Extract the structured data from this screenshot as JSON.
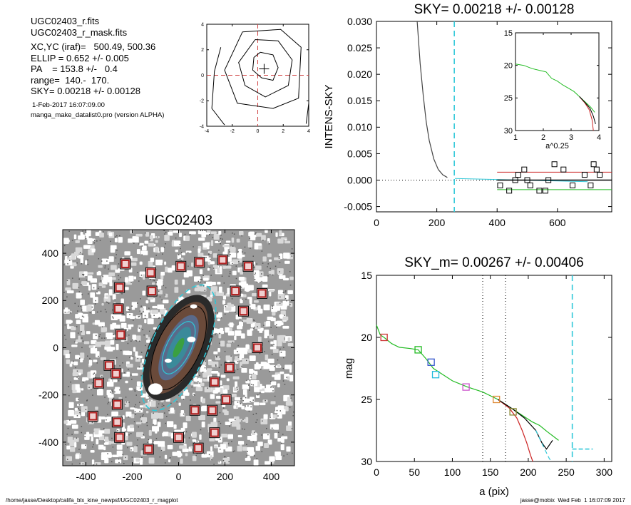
{
  "header": {
    "lines": [
      "UGC02403_r.fits",
      "UGC02403_r_mask.fits",
      "XC,YC (iraf)=   500.49, 500.36",
      "ELLIP = 0.652 +/- 0.005",
      "PA    = 153.8 +/-   0.4",
      "range=  140.-  170.",
      "SKY= 0.00218 +/- 0.00128"
    ],
    "date": "1-Feb-2017 16:07:09.00",
    "program": "manga_make_datalist0.pro (version ALPHA)"
  },
  "footer": {
    "path": "/home/jasse/Desktop/califa_blx_kine_newpsf/UGC02403_r_magplot",
    "user": "jasse@mobix  Wed Feb  1 16:07:09 2017"
  },
  "colors": {
    "sky_marker": "#30c8d8",
    "mag_green": "#22bb22",
    "mag_red": "#cc2222",
    "mag_black": "#000000",
    "mask_box": "#b02020",
    "ref_red": "#d04040"
  },
  "chart_data": [
    {
      "type": "contour",
      "title": "",
      "x_ticks": [
        "-4",
        "-2",
        "0",
        "2",
        "4"
      ],
      "y_ticks": [
        "-4",
        "-2",
        "0",
        "2",
        "4"
      ],
      "xlim": [
        -4,
        4
      ],
      "ylim": [
        -4,
        4
      ],
      "center": [
        0.5,
        0.5
      ],
      "contour_count": 4
    },
    {
      "type": "line",
      "title": "SKY= 0.00218 +/- 0.00128",
      "ylabel": "INTENS-SKY",
      "xlabel": "",
      "xlim": [
        0,
        780
      ],
      "ylim": [
        -0.006,
        0.03
      ],
      "x_ticks": [
        "0",
        "200",
        "400",
        "600"
      ],
      "y_ticks": [
        "0.030",
        "0.025",
        "0.020",
        "0.015",
        "0.010",
        "0.005",
        "0.000",
        "-0.005"
      ],
      "sky_radius": 258,
      "profile": [
        [
          135,
          0.03
        ],
        [
          145,
          0.022
        ],
        [
          155,
          0.016
        ],
        [
          165,
          0.011
        ],
        [
          175,
          0.0075
        ],
        [
          190,
          0.004
        ],
        [
          205,
          0.002
        ],
        [
          220,
          0.001
        ],
        [
          235,
          0.0005
        ]
      ],
      "sky_squares": [
        [
          410,
          -0.001
        ],
        [
          440,
          -0.002
        ],
        [
          470,
          0.001
        ],
        [
          490,
          0.002
        ],
        [
          510,
          -0.001
        ],
        [
          540,
          -0.002
        ],
        [
          570,
          0.0
        ],
        [
          590,
          0.003
        ],
        [
          620,
          0.002
        ],
        [
          650,
          -0.001
        ],
        [
          690,
          0.001
        ],
        [
          720,
          0.003
        ],
        [
          730,
          0.002
        ],
        [
          740,
          0.001
        ],
        [
          710,
          -0.001
        ],
        [
          560,
          -0.002
        ],
        [
          500,
          0.0
        ],
        [
          460,
          0.0
        ]
      ],
      "sky_level_lines": {
        "upper": 0.0015,
        "lower": -0.0018,
        "center": 0.0
      }
    },
    {
      "type": "line",
      "title": "",
      "xlabel": "a^0.25",
      "xlim": [
        1,
        4
      ],
      "ylim": [
        30,
        15
      ],
      "x_ticks": [
        "1",
        "2",
        "3",
        "4"
      ],
      "y_ticks": [
        "15",
        "20",
        "25",
        "30"
      ],
      "series": [
        {
          "color": "green",
          "points": [
            [
              1.0,
              19.8
            ],
            [
              1.3,
              20.0
            ],
            [
              1.6,
              20.5
            ],
            [
              1.9,
              20.8
            ],
            [
              2.1,
              21.0
            ],
            [
              2.3,
              22.0
            ],
            [
              2.5,
              22.4
            ],
            [
              2.7,
              23.0
            ],
            [
              2.9,
              23.5
            ],
            [
              3.1,
              24.0
            ],
            [
              3.3,
              24.8
            ],
            [
              3.5,
              25.6
            ],
            [
              3.7,
              26.4
            ],
            [
              3.85,
              27.2
            ]
          ]
        },
        {
          "color": "red",
          "points": [
            [
              3.3,
              24.8
            ],
            [
              3.5,
              25.8
            ],
            [
              3.65,
              26.8
            ],
            [
              3.75,
              28.3
            ],
            [
              3.8,
              30.0
            ]
          ]
        },
        {
          "color": "black",
          "points": [
            [
              3.3,
              24.8
            ],
            [
              3.5,
              25.7
            ],
            [
              3.68,
              26.6
            ],
            [
              3.8,
              27.8
            ],
            [
              3.88,
              29.0
            ]
          ]
        }
      ]
    },
    {
      "type": "image",
      "title": "UGC02403",
      "xlim": [
        -500,
        500
      ],
      "ylim": [
        -500,
        500
      ],
      "x_ticks": [
        "-400",
        "-200",
        "0",
        "200",
        "400"
      ],
      "y_ticks": [
        "400",
        "200",
        "0",
        "-200",
        "-400"
      ],
      "ellipse_pa_deg": 153.8,
      "ellipticity": 0.652,
      "mask_squares": [
        [
          -230,
          355
        ],
        [
          -120,
          318
        ],
        [
          10,
          345
        ],
        [
          90,
          362
        ],
        [
          190,
          372
        ],
        [
          300,
          345
        ],
        [
          -255,
          255
        ],
        [
          -115,
          240
        ],
        [
          245,
          240
        ],
        [
          360,
          230
        ],
        [
          -260,
          165
        ],
        [
          280,
          155
        ],
        [
          -250,
          55
        ],
        [
          340,
          0
        ],
        [
          -300,
          -75
        ],
        [
          -270,
          -110
        ],
        [
          220,
          -85
        ],
        [
          -345,
          -150
        ],
        [
          155,
          -145
        ],
        [
          -265,
          -240
        ],
        [
          205,
          -220
        ],
        [
          70,
          -265
        ],
        [
          145,
          -265
        ],
        [
          -370,
          -290
        ],
        [
          -265,
          -315
        ],
        [
          -255,
          -380
        ],
        [
          0,
          -380
        ],
        [
          155,
          -360
        ],
        [
          -130,
          -430
        ],
        [
          85,
          -425
        ]
      ]
    },
    {
      "type": "line",
      "title": "SKY_m=  0.00267 +/- 0.00406",
      "xlabel": "a (pix)",
      "ylabel": "mag",
      "xlim": [
        0,
        310
      ],
      "ylim": [
        30,
        15
      ],
      "x_ticks": [
        "0",
        "50",
        "100",
        "150",
        "200",
        "250",
        "300"
      ],
      "y_ticks": [
        "15",
        "20",
        "25",
        "30"
      ],
      "vlines_dotted": [
        140,
        170
      ],
      "sky_radius": 258,
      "series": [
        {
          "color": "green",
          "points": [
            [
              0,
              19.0
            ],
            [
              5,
              19.8
            ],
            [
              10,
              20.0
            ],
            [
              20,
              20.5
            ],
            [
              30,
              20.8
            ],
            [
              45,
              20.9
            ],
            [
              55,
              21.0
            ],
            [
              65,
              21.7
            ],
            [
              75,
              22.5
            ],
            [
              85,
              22.9
            ],
            [
              100,
              23.5
            ],
            [
              120,
              24.0
            ],
            [
              140,
              24.4
            ],
            [
              160,
              25.0
            ],
            [
              175,
              25.6
            ],
            [
              190,
              26.2
            ],
            [
              205,
              26.8
            ],
            [
              215,
              27.1
            ],
            [
              225,
              27.6
            ],
            [
              240,
              28.3
            ]
          ]
        },
        {
          "color": "red",
          "points": [
            [
              160,
              25.0
            ],
            [
              175,
              25.7
            ],
            [
              185,
              26.5
            ],
            [
              192,
              27.5
            ],
            [
              198,
              28.5
            ],
            [
              203,
              29.5
            ],
            [
              206,
              30.0
            ]
          ]
        },
        {
          "color": "black",
          "points": [
            [
              160,
              25.0
            ],
            [
              180,
              25.8
            ],
            [
              195,
              26.5
            ],
            [
              210,
              27.5
            ],
            [
              218,
              28.5
            ],
            [
              224,
              29.0
            ],
            [
              232,
              28.3
            ]
          ]
        },
        {
          "color": "dash",
          "points": [
            [
              210,
              27.5
            ],
            [
              220,
              28.8
            ],
            [
              228,
              29.8
            ],
            [
              232,
              30.0
            ]
          ]
        }
      ],
      "squares": [
        [
          10,
          20.0,
          "#cc3333"
        ],
        [
          55,
          21.0,
          "#22bb22"
        ],
        [
          72,
          22.0,
          "#3355cc"
        ],
        [
          78,
          23.0,
          "#22bbdd"
        ],
        [
          118,
          24.0,
          "#cc55cc"
        ],
        [
          158,
          25.0,
          "#dd8833"
        ],
        [
          180,
          26.0,
          "#888833"
        ]
      ],
      "sky_marker": [
        [
          258,
          29.0
        ],
        [
          285,
          29.0
        ]
      ]
    }
  ]
}
